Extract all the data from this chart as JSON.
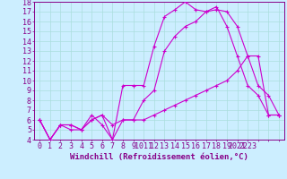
{
  "background_color": "#cceeff",
  "plot_bg_color": "#cceeff",
  "line_color": "#cc00cc",
  "xlabel": "Windchill (Refroidissement éolien,°C)",
  "xlim": [
    -0.5,
    23.5
  ],
  "ylim": [
    4,
    18
  ],
  "yticks": [
    4,
    5,
    6,
    7,
    8,
    9,
    10,
    11,
    12,
    13,
    14,
    15,
    16,
    17,
    18
  ],
  "xticks": [
    0,
    1,
    2,
    3,
    4,
    5,
    6,
    7,
    8,
    9,
    10,
    11,
    12,
    13,
    14,
    15,
    16,
    17,
    18,
    19,
    20,
    21,
    22,
    23
  ],
  "xticklabels": [
    "0",
    "1",
    "2",
    "3",
    "4",
    "5",
    "6",
    "7",
    "8",
    "9",
    "1011",
    "12",
    "13",
    "14",
    "15",
    "16",
    "17",
    "18",
    "19",
    "2021",
    "2223",
    "",
    "",
    ""
  ],
  "line1_x": [
    0,
    1,
    2,
    3,
    4,
    5,
    6,
    7,
    8,
    9,
    10,
    11,
    12,
    13,
    14,
    15,
    16,
    17,
    18,
    19,
    20,
    21,
    22,
    23
  ],
  "line1_y": [
    6.0,
    4.0,
    5.5,
    5.0,
    5.0,
    6.5,
    5.5,
    4.0,
    9.5,
    9.5,
    9.5,
    13.5,
    16.5,
    17.2,
    18.0,
    17.2,
    17.0,
    17.2,
    17.0,
    15.5,
    12.5,
    9.5,
    8.5,
    6.5
  ],
  "line2_x": [
    0,
    1,
    2,
    3,
    4,
    5,
    6,
    7,
    8,
    9,
    10,
    11,
    12,
    13,
    14,
    15,
    16,
    17,
    18,
    19,
    20,
    21,
    22,
    23
  ],
  "line2_y": [
    6.0,
    4.0,
    5.5,
    5.5,
    5.0,
    6.0,
    6.5,
    5.5,
    6.0,
    6.0,
    6.0,
    6.5,
    7.0,
    7.5,
    8.0,
    8.5,
    9.0,
    9.5,
    10.0,
    11.0,
    12.5,
    12.5,
    6.5,
    6.5
  ],
  "line3_x": [
    0,
    1,
    2,
    3,
    4,
    5,
    6,
    7,
    8,
    9,
    10,
    11,
    12,
    13,
    14,
    15,
    16,
    17,
    18,
    19,
    20,
    21,
    22,
    23
  ],
  "line3_y": [
    6.0,
    4.0,
    5.5,
    5.5,
    5.0,
    6.0,
    6.5,
    4.0,
    6.0,
    6.0,
    8.0,
    9.0,
    13.0,
    14.5,
    15.5,
    16.0,
    17.0,
    17.5,
    15.5,
    12.5,
    9.5,
    8.5,
    6.5,
    6.5
  ],
  "marker": "+",
  "markersize": 3,
  "linewidth": 0.8,
  "grid_color": "#aadddd",
  "xlabel_fontsize": 6.5,
  "tick_fontsize": 6,
  "tick_color": "#880088",
  "label_color": "#880088",
  "spine_color": "#880088"
}
